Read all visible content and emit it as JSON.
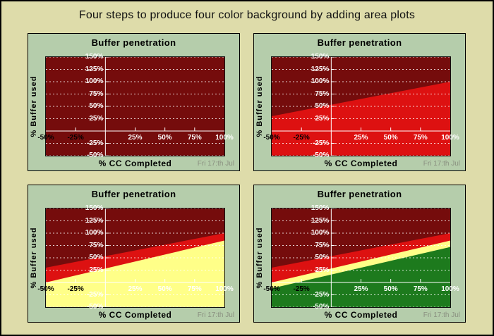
{
  "page": {
    "title": "Four steps to produce four color background by adding area plots"
  },
  "colors": {
    "outer_background": "#dedcaa",
    "panel_background": "#b5cdab",
    "dark_red": "#750c0c",
    "red": "#dd1111",
    "yellow": "#ffff88",
    "green": "#1d7a1d",
    "grid": "#ffffff",
    "axis": "#ffffff",
    "tick_label_white": "#ffffff",
    "tick_label_black": "#000000",
    "date_gray": "#8a9080"
  },
  "chart_data": [
    {
      "type": "area",
      "step": 1,
      "title": "Buffer penetration",
      "xlabel": "% CC Completed",
      "ylabel": "% Buffer used",
      "annotation": "Fri 17:th Jul",
      "xlim": [
        -50,
        100
      ],
      "ylim": [
        -50,
        150
      ],
      "background": "#750c0c",
      "y_grid": [
        -50,
        -25,
        25,
        50,
        75,
        100,
        125,
        150
      ],
      "x_tick_marks": [
        -25,
        25,
        50,
        75
      ],
      "x_ticks": [
        {
          "v": -50,
          "label": "-50%",
          "color": "#000000"
        },
        {
          "v": -25,
          "label": "-25%",
          "color": "#000000"
        },
        {
          "v": 25,
          "label": "25%",
          "color": "#ffffff"
        },
        {
          "v": 50,
          "label": "50%",
          "color": "#ffffff"
        },
        {
          "v": 75,
          "label": "75%",
          "color": "#ffffff"
        },
        {
          "v": 100,
          "label": "100%",
          "color": "#ffffff"
        }
      ],
      "y_ticks": [
        {
          "v": 150,
          "label": "150%",
          "color": "#ffffff"
        },
        {
          "v": 125,
          "label": "125%",
          "color": "#ffffff"
        },
        {
          "v": 100,
          "label": "100%",
          "color": "#ffffff"
        },
        {
          "v": 75,
          "label": "75%",
          "color": "#ffffff"
        },
        {
          "v": 50,
          "label": "50%",
          "color": "#ffffff"
        },
        {
          "v": 25,
          "label": "25%",
          "color": "#ffffff"
        },
        {
          "v": -25,
          "label": "-25%",
          "color": "#ffffff"
        },
        {
          "v": -50,
          "label": "-50%",
          "color": "#ffffff"
        }
      ],
      "series": []
    },
    {
      "type": "area",
      "step": 2,
      "title": "Buffer penetration",
      "xlabel": "% CC Completed",
      "ylabel": "% Buffer used",
      "annotation": "Fri 17:th Jul",
      "xlim": [
        -50,
        100
      ],
      "ylim": [
        -50,
        150
      ],
      "background": "#750c0c",
      "y_grid": [
        -50,
        -25,
        25,
        50,
        75,
        100,
        125,
        150
      ],
      "x_tick_marks": [
        -25,
        25,
        50,
        75
      ],
      "x_ticks": [
        {
          "v": -50,
          "label": "-50%",
          "color": "#000000"
        },
        {
          "v": -25,
          "label": "-25%",
          "color": "#000000"
        },
        {
          "v": 25,
          "label": "25%",
          "color": "#ffffff"
        },
        {
          "v": 50,
          "label": "50%",
          "color": "#ffffff"
        },
        {
          "v": 75,
          "label": "75%",
          "color": "#ffffff"
        },
        {
          "v": 100,
          "label": "100%",
          "color": "#ffffff"
        }
      ],
      "y_ticks": [
        {
          "v": 150,
          "label": "150%",
          "color": "#ffffff"
        },
        {
          "v": 125,
          "label": "125%",
          "color": "#ffffff"
        },
        {
          "v": 100,
          "label": "100%",
          "color": "#ffffff"
        },
        {
          "v": 75,
          "label": "75%",
          "color": "#ffffff"
        },
        {
          "v": 50,
          "label": "50%",
          "color": "#ffffff"
        },
        {
          "v": 25,
          "label": "25%",
          "color": "#ffffff"
        },
        {
          "v": -25,
          "label": "-25%",
          "color": "#ffffff"
        },
        {
          "v": -50,
          "label": "-50%",
          "color": "#ffffff"
        }
      ],
      "series": [
        {
          "name": "red-area",
          "color": "#dd1111",
          "fill": "below",
          "x": [
            -50,
            100
          ],
          "y": [
            30,
            100
          ]
        }
      ]
    },
    {
      "type": "area",
      "step": 3,
      "title": "Buffer penetration",
      "xlabel": "% CC Completed",
      "ylabel": "% Buffer used",
      "annotation": "Fri 17:th Jul",
      "xlim": [
        -50,
        100
      ],
      "ylim": [
        -50,
        150
      ],
      "background": "#750c0c",
      "y_grid": [
        -50,
        -25,
        25,
        50,
        75,
        100,
        125,
        150
      ],
      "x_tick_marks": [
        -25,
        25,
        50,
        75
      ],
      "x_ticks": [
        {
          "v": -50,
          "label": "-50%",
          "color": "#000000"
        },
        {
          "v": -25,
          "label": "-25%",
          "color": "#000000"
        },
        {
          "v": 25,
          "label": "25%",
          "color": "#ffffff"
        },
        {
          "v": 50,
          "label": "50%",
          "color": "#ffffff"
        },
        {
          "v": 75,
          "label": "75%",
          "color": "#ffffff"
        },
        {
          "v": 100,
          "label": "100%",
          "color": "#ffffff"
        }
      ],
      "y_ticks": [
        {
          "v": 150,
          "label": "150%",
          "color": "#ffffff"
        },
        {
          "v": 125,
          "label": "125%",
          "color": "#ffffff"
        },
        {
          "v": 100,
          "label": "100%",
          "color": "#ffffff"
        },
        {
          "v": 75,
          "label": "75%",
          "color": "#ffffff"
        },
        {
          "v": 50,
          "label": "50%",
          "color": "#ffffff"
        },
        {
          "v": 25,
          "label": "25%",
          "color": "#ffffff"
        },
        {
          "v": -25,
          "label": "-25%",
          "color": "#ffffff"
        },
        {
          "v": -50,
          "label": "-50%",
          "color": "#ffffff"
        }
      ],
      "series": [
        {
          "name": "red-area",
          "color": "#dd1111",
          "fill": "below",
          "x": [
            -50,
            100
          ],
          "y": [
            30,
            100
          ]
        },
        {
          "name": "yellow-area",
          "color": "#ffff88",
          "fill": "below",
          "x": [
            -50,
            100
          ],
          "y": [
            0,
            85
          ]
        }
      ]
    },
    {
      "type": "area",
      "step": 4,
      "title": "Buffer penetration",
      "xlabel": "% CC Completed",
      "ylabel": "% Buffer used",
      "annotation": "Fri 17:th Jul",
      "xlim": [
        -50,
        100
      ],
      "ylim": [
        -50,
        150
      ],
      "background": "#750c0c",
      "y_grid": [
        -50,
        -25,
        25,
        50,
        75,
        100,
        125,
        150
      ],
      "x_tick_marks": [
        -25,
        25,
        50,
        75
      ],
      "x_ticks": [
        {
          "v": -50,
          "label": "-50%",
          "color": "#000000"
        },
        {
          "v": -25,
          "label": "-25%",
          "color": "#000000"
        },
        {
          "v": 25,
          "label": "25%",
          "color": "#ffffff"
        },
        {
          "v": 50,
          "label": "50%",
          "color": "#ffffff"
        },
        {
          "v": 75,
          "label": "75%",
          "color": "#ffffff"
        },
        {
          "v": 100,
          "label": "100%",
          "color": "#ffffff"
        }
      ],
      "y_ticks": [
        {
          "v": 150,
          "label": "150%",
          "color": "#ffffff"
        },
        {
          "v": 125,
          "label": "125%",
          "color": "#ffffff"
        },
        {
          "v": 100,
          "label": "100%",
          "color": "#ffffff"
        },
        {
          "v": 75,
          "label": "75%",
          "color": "#ffffff"
        },
        {
          "v": 50,
          "label": "50%",
          "color": "#ffffff"
        },
        {
          "v": 25,
          "label": "25%",
          "color": "#ffffff"
        },
        {
          "v": -25,
          "label": "-25%",
          "color": "#ffffff"
        },
        {
          "v": -50,
          "label": "-50%",
          "color": "#ffffff"
        }
      ],
      "series": [
        {
          "name": "red-area",
          "color": "#dd1111",
          "fill": "below",
          "x": [
            -50,
            100
          ],
          "y": [
            30,
            100
          ]
        },
        {
          "name": "yellow-area",
          "color": "#ffff88",
          "fill": "below",
          "x": [
            -50,
            100
          ],
          "y": [
            0,
            85
          ]
        },
        {
          "name": "green-area",
          "color": "#1d7a1d",
          "fill": "below",
          "x": [
            -50,
            100
          ],
          "y": [
            -12,
            72
          ]
        }
      ]
    }
  ]
}
